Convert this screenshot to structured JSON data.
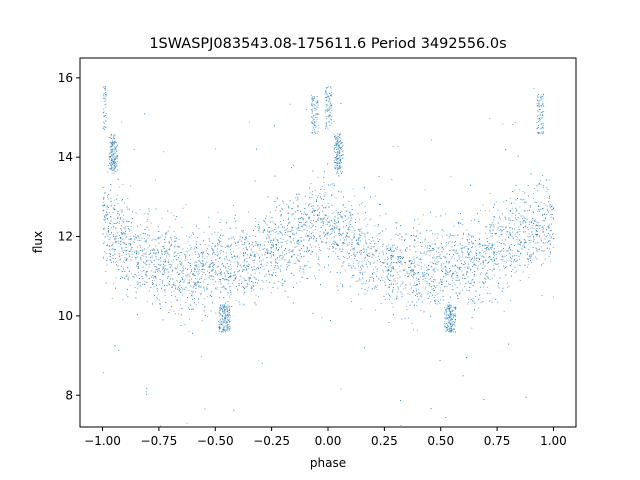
{
  "chart_data": {
    "type": "scatter",
    "title": "1SWASPJ083543.08-175611.6 Period 3492556.0s",
    "xlabel": "phase",
    "ylabel": "flux",
    "xlim": [
      -1.1,
      1.1
    ],
    "ylim": [
      7.2,
      16.5
    ],
    "xticks": [
      -1.0,
      -0.75,
      -0.5,
      -0.25,
      0.0,
      0.25,
      0.5,
      0.75,
      1.0
    ],
    "xtick_labels": [
      "−1.00",
      "−0.75",
      "−0.50",
      "−0.25",
      "0.00",
      "0.25",
      "0.50",
      "0.75",
      "1.00"
    ],
    "yticks": [
      8,
      10,
      12,
      14,
      16
    ],
    "ytick_labels": [
      "8",
      "10",
      "12",
      "14",
      "16"
    ],
    "grid": false,
    "legend": "none",
    "point_color": "#1f77b4",
    "series": [
      {
        "profile_phase": [
          0.0,
          0.02,
          0.05,
          0.1,
          0.15,
          0.2,
          0.25,
          0.3,
          0.35,
          0.4,
          0.45,
          0.5,
          0.55,
          0.6,
          0.65,
          0.7,
          0.75,
          0.8,
          0.85,
          0.9,
          0.95,
          1.0
        ],
        "profile_flux": [
          12.4,
          12.2,
          12.0,
          11.8,
          11.6,
          11.5,
          11.4,
          11.3,
          11.2,
          11.1,
          11.2,
          11.3,
          11.3,
          11.3,
          11.4,
          11.5,
          11.7,
          11.9,
          12.0,
          12.1,
          12.3,
          12.4
        ],
        "bursts": [
          {
            "phase": 0.0,
            "flux_range": [
              14.7,
              15.8
            ]
          },
          {
            "phase": 0.05,
            "flux_range": [
              13.6,
              14.4
            ]
          },
          {
            "phase": 0.94,
            "flux_range": [
              14.6,
              15.6
            ]
          },
          {
            "phase": -0.96,
            "flux_range": [
              13.7,
              14.6
            ]
          },
          {
            "phase": 0.53,
            "flux_range": [
              9.6,
              10.3
            ]
          },
          {
            "phase": -0.45,
            "flux_range": [
              9.6,
              10.3
            ]
          }
        ]
      }
    ]
  }
}
